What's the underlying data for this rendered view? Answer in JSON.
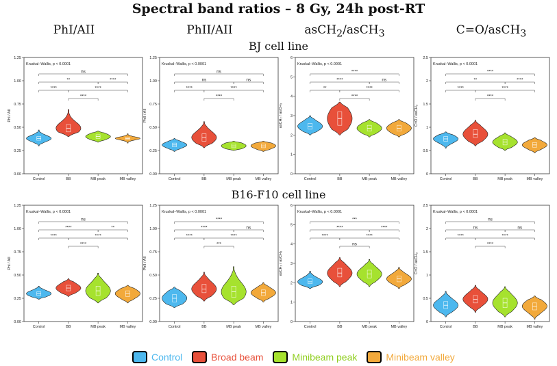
{
  "title": "Spectral band ratios – 8 Gy, 24h post-RT",
  "column_titles": [
    {
      "base": "PhI/AII",
      "sub1": "",
      "mid": "",
      "sub2": ""
    },
    {
      "base": "PhII/AII",
      "sub1": "",
      "mid": "",
      "sub2": ""
    },
    {
      "base": "asCH",
      "sub1": "2",
      "mid": "/asCH",
      "sub2": "3"
    },
    {
      "base": "C=O/asCH",
      "sub1": "3",
      "mid": "",
      "sub2": ""
    }
  ],
  "row_titles": [
    "BJ cell line",
    "B16-F10 cell line"
  ],
  "groups": [
    "Control",
    "BB",
    "MB peak",
    "MB valley"
  ],
  "legend": [
    {
      "label": "Control",
      "color": "#4db8ee"
    },
    {
      "label": "Broad beam",
      "color": "#e8503a"
    },
    {
      "label": "Minibeam peak",
      "color": "#a6e22e"
    },
    {
      "label": "Minibeam valley",
      "color": "#f2a93b"
    }
  ],
  "label_colors": [
    "#4db8ee",
    "#e8503a",
    "#8fce1e",
    "#f2a93b"
  ],
  "chart_data": [
    {
      "type": "violin",
      "row": "BJ cell line",
      "column": "PhI/AII",
      "ylabel": "PhI / AII",
      "ylim": [
        0,
        1.25
      ],
      "yticks": [
        "0.00",
        "0.25",
        "0.50",
        "0.75",
        "1.00",
        "1.25"
      ],
      "kw_text": "Kruskal–Wallis, p < 0.0001",
      "series": [
        {
          "group": "Control",
          "median": 0.38,
          "min": 0.3,
          "max": 0.47,
          "q1": 0.36,
          "q3": 0.4
        },
        {
          "group": "BB",
          "median": 0.49,
          "min": 0.4,
          "max": 0.69,
          "q1": 0.45,
          "q3": 0.53
        },
        {
          "group": "MB peak",
          "median": 0.4,
          "min": 0.34,
          "max": 0.46,
          "q1": 0.38,
          "q3": 0.42
        },
        {
          "group": "MB valley",
          "median": 0.38,
          "min": 0.33,
          "max": 0.43,
          "q1": 0.37,
          "q3": 0.39
        }
      ],
      "comparisons": [
        {
          "from": 0,
          "to": 3,
          "label": "ns"
        },
        {
          "from": 0,
          "to": 2,
          "label": "**"
        },
        {
          "from": 2,
          "to": 3,
          "label": "****"
        },
        {
          "from": 0,
          "to": 1,
          "label": "****"
        },
        {
          "from": 1,
          "to": 3,
          "label": "****"
        },
        {
          "from": 1,
          "to": 2,
          "label": "****"
        }
      ]
    },
    {
      "type": "violin",
      "row": "BJ cell line",
      "column": "PhII/AII",
      "ylabel": "PhII / AII",
      "ylim": [
        0,
        1.25
      ],
      "yticks": [
        "0.00",
        "0.25",
        "0.50",
        "0.75",
        "1.00",
        "1.25"
      ],
      "kw_text": "Kruskal–Wallis, p < 0.0001",
      "series": [
        {
          "group": "Control",
          "median": 0.31,
          "min": 0.24,
          "max": 0.38,
          "q1": 0.29,
          "q3": 0.33
        },
        {
          "group": "BB",
          "median": 0.39,
          "min": 0.28,
          "max": 0.56,
          "q1": 0.35,
          "q3": 0.43
        },
        {
          "group": "MB peak",
          "median": 0.3,
          "min": 0.25,
          "max": 0.35,
          "q1": 0.28,
          "q3": 0.32
        },
        {
          "group": "MB valley",
          "median": 0.3,
          "min": 0.24,
          "max": 0.35,
          "q1": 0.28,
          "q3": 0.32
        }
      ],
      "comparisons": [
        {
          "from": 0,
          "to": 3,
          "label": "ns"
        },
        {
          "from": 0,
          "to": 2,
          "label": "ns"
        },
        {
          "from": 2,
          "to": 3,
          "label": "ns"
        },
        {
          "from": 0,
          "to": 1,
          "label": "****"
        },
        {
          "from": 1,
          "to": 3,
          "label": "****"
        },
        {
          "from": 1,
          "to": 2,
          "label": "****"
        }
      ]
    },
    {
      "type": "violin",
      "row": "BJ cell line",
      "column": "asCH2/asCH3",
      "ylabel": "asCH₂ / asCH₃",
      "ylim": [
        0,
        6
      ],
      "yticks": [
        "0",
        "1",
        "2",
        "3",
        "4",
        "5",
        "6"
      ],
      "kw_text": "Kruskal–Wallis, p < 0.0001",
      "series": [
        {
          "group": "Control",
          "median": 2.45,
          "min": 2.0,
          "max": 3.0,
          "q1": 2.3,
          "q3": 2.6
        },
        {
          "group": "BB",
          "median": 2.85,
          "min": 2.0,
          "max": 3.7,
          "q1": 2.5,
          "q3": 3.2
        },
        {
          "group": "MB peak",
          "median": 2.35,
          "min": 1.9,
          "max": 2.8,
          "q1": 2.2,
          "q3": 2.5
        },
        {
          "group": "MB valley",
          "median": 2.35,
          "min": 1.9,
          "max": 2.8,
          "q1": 2.2,
          "q3": 2.5
        }
      ],
      "comparisons": [
        {
          "from": 0,
          "to": 3,
          "label": "****"
        },
        {
          "from": 0,
          "to": 2,
          "label": "****"
        },
        {
          "from": 2,
          "to": 3,
          "label": "ns"
        },
        {
          "from": 0,
          "to": 1,
          "label": "**"
        },
        {
          "from": 1,
          "to": 3,
          "label": "****"
        },
        {
          "from": 1,
          "to": 2,
          "label": "****"
        }
      ]
    },
    {
      "type": "violin",
      "row": "BJ cell line",
      "column": "C=O/asCH3",
      "ylabel": "C=O / asCH₃",
      "ylim": [
        0,
        2.5
      ],
      "yticks": [
        "0",
        "0.5",
        "1",
        "1.5",
        "2",
        "2.5"
      ],
      "kw_text": "Kruskal–Wallis, p < 0.0001",
      "series": [
        {
          "group": "Control",
          "median": 0.75,
          "min": 0.55,
          "max": 0.9,
          "q1": 0.7,
          "q3": 0.8
        },
        {
          "group": "BB",
          "median": 0.85,
          "min": 0.6,
          "max": 1.15,
          "q1": 0.78,
          "q3": 0.95
        },
        {
          "group": "MB peak",
          "median": 0.68,
          "min": 0.5,
          "max": 0.88,
          "q1": 0.62,
          "q3": 0.74
        },
        {
          "group": "MB valley",
          "median": 0.62,
          "min": 0.45,
          "max": 0.78,
          "q1": 0.57,
          "q3": 0.67
        }
      ],
      "comparisons": [
        {
          "from": 0,
          "to": 3,
          "label": "****"
        },
        {
          "from": 0,
          "to": 2,
          "label": "**"
        },
        {
          "from": 2,
          "to": 3,
          "label": "****"
        },
        {
          "from": 0,
          "to": 1,
          "label": "****"
        },
        {
          "from": 1,
          "to": 3,
          "label": "****"
        },
        {
          "from": 1,
          "to": 2,
          "label": "****"
        }
      ]
    },
    {
      "type": "violin",
      "row": "B16-F10 cell line",
      "column": "PhI/AII",
      "ylabel": "PhI / AII",
      "ylim": [
        0,
        1.25
      ],
      "yticks": [
        "0.00",
        "0.25",
        "0.50",
        "0.75",
        "1.00",
        "1.25"
      ],
      "kw_text": "Kruskal–Wallis, p < 0.0001",
      "series": [
        {
          "group": "Control",
          "median": 0.3,
          "min": 0.24,
          "max": 0.38,
          "q1": 0.28,
          "q3": 0.32
        },
        {
          "group": "BB",
          "median": 0.36,
          "min": 0.27,
          "max": 0.46,
          "q1": 0.33,
          "q3": 0.39
        },
        {
          "group": "MB peak",
          "median": 0.33,
          "min": 0.2,
          "max": 0.52,
          "q1": 0.28,
          "q3": 0.38
        },
        {
          "group": "MB valley",
          "median": 0.3,
          "min": 0.2,
          "max": 0.39,
          "q1": 0.27,
          "q3": 0.33
        }
      ],
      "comparisons": [
        {
          "from": 0,
          "to": 3,
          "label": "ns"
        },
        {
          "from": 0,
          "to": 2,
          "label": "****"
        },
        {
          "from": 2,
          "to": 3,
          "label": "**"
        },
        {
          "from": 0,
          "to": 1,
          "label": "****"
        },
        {
          "from": 1,
          "to": 3,
          "label": "****"
        },
        {
          "from": 1,
          "to": 2,
          "label": "****"
        }
      ]
    },
    {
      "type": "violin",
      "row": "B16-F10 cell line",
      "column": "PhII/AII",
      "ylabel": "PhII / AII",
      "ylim": [
        0,
        1.25
      ],
      "yticks": [
        "0.00",
        "0.25",
        "0.50",
        "0.75",
        "1.00",
        "1.25"
      ],
      "kw_text": "Kruskal–Wallis, p < 0.0001",
      "series": [
        {
          "group": "Control",
          "median": 0.25,
          "min": 0.15,
          "max": 0.37,
          "q1": 0.21,
          "q3": 0.29
        },
        {
          "group": "BB",
          "median": 0.35,
          "min": 0.22,
          "max": 0.53,
          "q1": 0.31,
          "q3": 0.4
        },
        {
          "group": "MB peak",
          "median": 0.32,
          "min": 0.18,
          "max": 0.59,
          "q1": 0.26,
          "q3": 0.38
        },
        {
          "group": "MB valley",
          "median": 0.31,
          "min": 0.21,
          "max": 0.42,
          "q1": 0.28,
          "q3": 0.34
        }
      ],
      "comparisons": [
        {
          "from": 0,
          "to": 3,
          "label": "****"
        },
        {
          "from": 0,
          "to": 2,
          "label": "****"
        },
        {
          "from": 2,
          "to": 3,
          "label": "ns"
        },
        {
          "from": 0,
          "to": 1,
          "label": "****"
        },
        {
          "from": 1,
          "to": 3,
          "label": "****"
        },
        {
          "from": 1,
          "to": 2,
          "label": "***"
        }
      ]
    },
    {
      "type": "violin",
      "row": "B16-F10 cell line",
      "column": "asCH2/asCH3",
      "ylabel": "asCH₂ / asCH₃",
      "ylim": [
        0,
        6
      ],
      "yticks": [
        "0",
        "1",
        "2",
        "3",
        "4",
        "5",
        "6"
      ],
      "kw_text": "Kruskal–Wallis, p < 0.0001",
      "series": [
        {
          "group": "Control",
          "median": 2.05,
          "min": 1.7,
          "max": 2.6,
          "q1": 1.95,
          "q3": 2.2
        },
        {
          "group": "BB",
          "median": 2.5,
          "min": 1.8,
          "max": 3.3,
          "q1": 2.3,
          "q3": 2.75
        },
        {
          "group": "MB peak",
          "median": 2.45,
          "min": 1.8,
          "max": 3.2,
          "q1": 2.25,
          "q3": 2.65
        },
        {
          "group": "MB valley",
          "median": 2.2,
          "min": 1.7,
          "max": 2.8,
          "q1": 2.05,
          "q3": 2.35
        }
      ],
      "comparisons": [
        {
          "from": 0,
          "to": 3,
          "label": "***"
        },
        {
          "from": 0,
          "to": 2,
          "label": "****"
        },
        {
          "from": 2,
          "to": 3,
          "label": "****"
        },
        {
          "from": 0,
          "to": 1,
          "label": "****"
        },
        {
          "from": 1,
          "to": 3,
          "label": "****"
        },
        {
          "from": 1,
          "to": 2,
          "label": "ns"
        }
      ]
    },
    {
      "type": "violin",
      "row": "B16-F10 cell line",
      "column": "C=O/asCH3",
      "ylabel": "C=O / asCH₃",
      "ylim": [
        0,
        2.5
      ],
      "yticks": [
        "0",
        "0.5",
        "1",
        "1.5",
        "2",
        "2.5"
      ],
      "kw_text": "Kruskal–Wallis, p < 0.0001",
      "series": [
        {
          "group": "Control",
          "median": 0.35,
          "min": 0.1,
          "max": 0.65,
          "q1": 0.28,
          "q3": 0.43
        },
        {
          "group": "BB",
          "median": 0.48,
          "min": 0.2,
          "max": 0.78,
          "q1": 0.4,
          "q3": 0.56
        },
        {
          "group": "MB peak",
          "median": 0.4,
          "min": 0.1,
          "max": 0.75,
          "q1": 0.3,
          "q3": 0.5
        },
        {
          "group": "MB valley",
          "median": 0.33,
          "min": 0.05,
          "max": 0.55,
          "q1": 0.25,
          "q3": 0.4
        }
      ],
      "comparisons": [
        {
          "from": 0,
          "to": 3,
          "label": "ns"
        },
        {
          "from": 0,
          "to": 2,
          "label": "ns"
        },
        {
          "from": 2,
          "to": 3,
          "label": "ns"
        },
        {
          "from": 0,
          "to": 1,
          "label": "****"
        },
        {
          "from": 1,
          "to": 3,
          "label": "****"
        },
        {
          "from": 1,
          "to": 2,
          "label": "****"
        }
      ]
    }
  ]
}
